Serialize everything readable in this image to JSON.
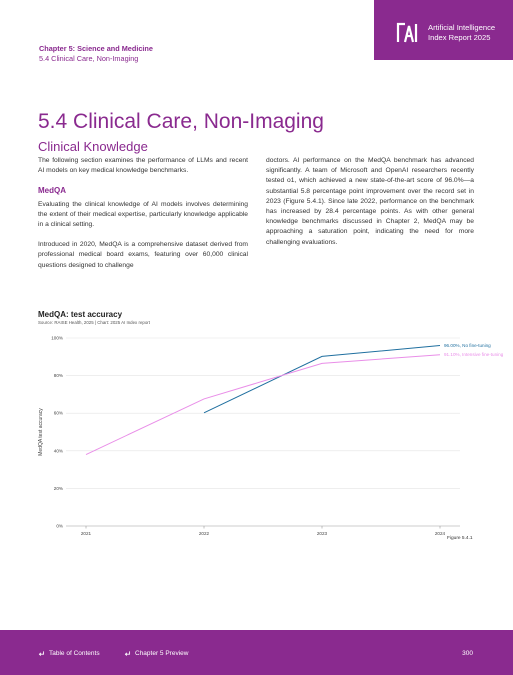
{
  "header": {
    "chapter": "Chapter 5: Science and Medicine",
    "section": "5.4 Clinical Care, Non-Imaging",
    "brand_line1": "Artificial Intelligence",
    "brand_line2": "Index Report 2025"
  },
  "title": "5.4 Clinical Care, Non-Imaging",
  "subtitle": "Clinical Knowledge",
  "body": {
    "intro": "The following section examines the performance of LLMs and recent AI models on key medical knowledge benchmarks.",
    "medqa_heading": "MedQA",
    "p1": "Evaluating the clinical knowledge of AI models involves determining the extent of their medical expertise, particularly knowledge applicable in a clinical setting.",
    "p2": "Introduced in 2020, MedQA is a comprehensive dataset derived from professional medical board exams, featuring over 60,000 clinical questions designed to challenge",
    "p3": "doctors. AI performance on the MedQA benchmark has advanced significantly. A team of Microsoft and OpenAI researchers recently tested o1, which achieved a new state-of-the-art score of 96.0%—a substantial 5.8 percentage point improvement over the record set in 2023 (Figure 5.4.1). Since late 2022, performance on the benchmark has increased by 28.4 percentage points. As with other general knowledge benchmarks discussed in Chapter 2, MedQA may be approaching a saturation point, indicating the need for more challenging evaluations."
  },
  "chart_title": "MedQA: test accuracy",
  "chart_source": "Source: RAISE Health, 2025 | Chart: 2025 AI Index report",
  "figure_label": "Figure 5.4.1",
  "chart_data": {
    "type": "line",
    "title": "MedQA: test accuracy",
    "xlabel": "",
    "ylabel": "MedQA test accuracy",
    "x": [
      2021,
      2022,
      2023,
      2024
    ],
    "x_ticks": [
      "2021",
      "2022",
      "2023",
      "2024"
    ],
    "y_ticks": [
      "0%",
      "20%",
      "40%",
      "60%",
      "80%",
      "100%"
    ],
    "ylim": [
      0,
      100
    ],
    "grid": "horizontal",
    "series": [
      {
        "name": "No fine-tuning",
        "label": "96.00%, No fine-tuning",
        "color": "#1f6f9f",
        "points": [
          [
            2022,
            60.2
          ],
          [
            2023,
            90.2
          ],
          [
            2024,
            96.0
          ]
        ]
      },
      {
        "name": "Intensive fine-tuning",
        "label": "91.10%, Intensive fine-tuning",
        "color": "#e98ee8",
        "points": [
          [
            2021,
            38.0
          ],
          [
            2022,
            67.6
          ],
          [
            2023,
            86.5
          ],
          [
            2024,
            91.1
          ]
        ]
      }
    ]
  },
  "footer": {
    "toc": "Table of Contents",
    "prev": "Chapter 5 Preview",
    "page": "300"
  },
  "colors": {
    "accent": "#8a2a8f"
  }
}
